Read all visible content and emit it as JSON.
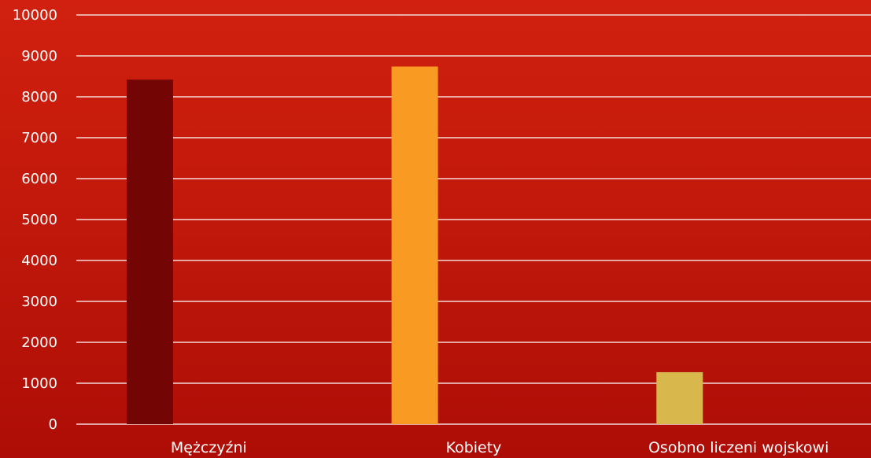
{
  "chart_data": {
    "type": "bar",
    "title": "",
    "xlabel": "",
    "ylabel": "",
    "categories": [
      "Mężczyźni",
      "Kobiety",
      "Osobno liczeni wojskowi"
    ],
    "values": [
      8420,
      8740,
      1270
    ],
    "bar_colors": [
      "#730604",
      "#f99a22",
      "#d8b74c"
    ],
    "ylim": [
      0,
      10000
    ],
    "yticks": [
      0,
      1000,
      2000,
      3000,
      4000,
      5000,
      6000,
      7000,
      8000,
      9000,
      10000
    ],
    "grid": true,
    "legend": "none"
  }
}
